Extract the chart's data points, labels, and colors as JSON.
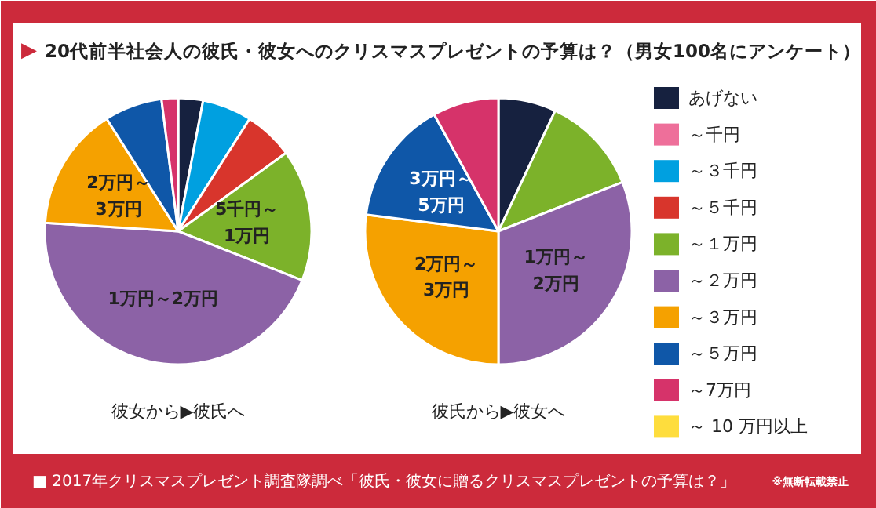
{
  "chart_data": [
    {
      "type": "pie",
      "title": "▶ 20代前半社会人の彼氏・彼女へのクリスマスプレゼントの予算は？（男女100名にアンケート）",
      "xlabel": "彼女から▶彼氏へ",
      "categories": [
        "あげない",
        "～千円",
        "～３千円",
        "～５千円",
        "～１万円",
        "～２万円",
        "～３万円",
        "～５万円",
        "～7万円",
        "～ 10 万円以上"
      ],
      "values": [
        3,
        0,
        6,
        6,
        16,
        45,
        15,
        7,
        2,
        0
      ],
      "colors": [
        "#16213f",
        "#ee6f9a",
        "#00a0e0",
        "#d8352c",
        "#7cb22a",
        "#8c62a6",
        "#f5a100",
        "#0f57a8",
        "#d6336a",
        "#fedd3d"
      ],
      "legend": "right",
      "annotations": [
        {
          "text": "5千円～\n1万円",
          "x": "～１万円"
        },
        {
          "text": "1万円～2万円",
          "x": "～２万円"
        },
        {
          "text": "2万円～\n3万円",
          "x": "～３万円"
        },
        "■ 2017年クリスマスプレゼント調査隊調べ「彼氏・彼女に贈るクリスマスプレゼントの予算は？」",
        "※無断転載禁止"
      ]
    },
    {
      "type": "pie",
      "xlabel": "彼氏から▶彼女へ",
      "categories": [
        null,
        null,
        null,
        null,
        null,
        null,
        null,
        null,
        null,
        null
      ],
      "values": [
        7,
        0,
        0,
        0,
        12,
        31,
        27,
        15,
        8,
        0
      ],
      "colors": [
        "#16213f",
        "#ee6f9a",
        "#00a0e0",
        "#d8352c",
        "#7cb22a",
        "#8c62a6",
        "#f5a100",
        "#0f57a8",
        "#d6336a",
        "#fedd3d"
      ],
      "annotations": [
        "1万円～\n2万円",
        "2万円～\n3万円",
        "3万円～\n5万円"
      ]
    }
  ]
}
